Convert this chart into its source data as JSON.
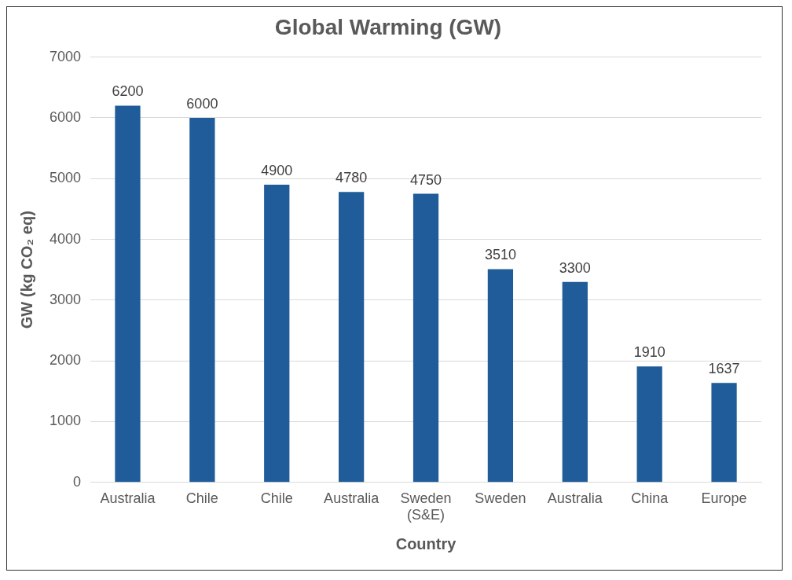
{
  "chart_data": {
    "type": "bar",
    "title": "Global Warming (GW)",
    "xlabel": "Country",
    "ylabel": "GW (kg CO₂ eq)",
    "categories": [
      "Australia",
      "Chile",
      "Chile",
      "Australia",
      "Sweden (S&E)",
      "Sweden",
      "Australia",
      "China",
      "Europe"
    ],
    "values": [
      6200,
      6000,
      4900,
      4780,
      4750,
      3510,
      3300,
      1910,
      1637
    ],
    "color": "#1f5c99",
    "ylim": [
      0,
      7000
    ],
    "yticks": [
      0,
      1000,
      2000,
      3000,
      4000,
      5000,
      6000,
      7000
    ],
    "grid": "y",
    "data_labels": true,
    "legend": false
  }
}
